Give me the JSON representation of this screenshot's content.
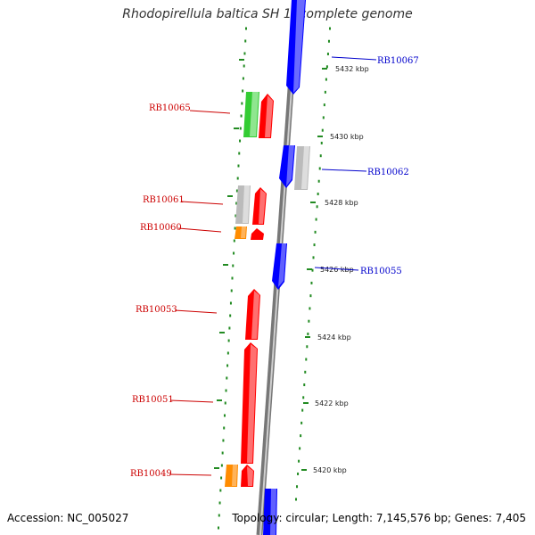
{
  "title": "Rhodopirellula baltica SH 1, complete genome",
  "accession": "Accession: NC_005027",
  "topology": "Topology: circular; Length: 7,145,576 bp; Genes: 7,405",
  "colors": {
    "forward": "#ff0000",
    "reverse": "#0000ff",
    "green": "#33cc33",
    "orange": "#ff8c00",
    "gray": "#bbbbbb",
    "dots": "#228b22",
    "backbone": "#888888"
  },
  "ticks": [
    "5432 kbp",
    "5430 kbp",
    "5428 kbp",
    "5426 kbp",
    "5424 kbp",
    "5422 kbp",
    "5420 kbp"
  ],
  "labels": {
    "left": [
      "RB10065",
      "RB10061",
      "RB10060",
      "RB10053",
      "RB10051",
      "RB10049"
    ],
    "right": [
      "RB10067",
      "RB10062",
      "RB10055"
    ]
  }
}
